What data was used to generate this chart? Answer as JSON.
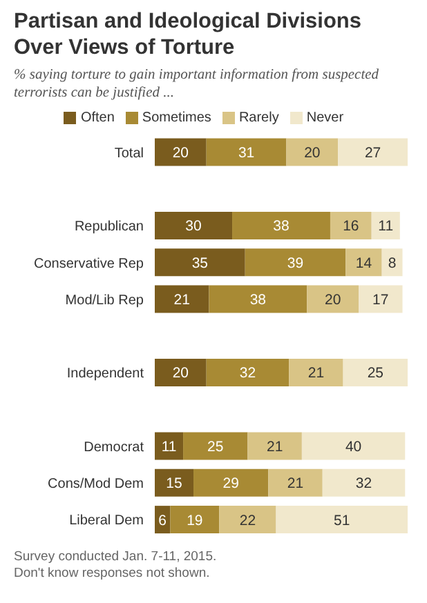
{
  "chart_data": {
    "type": "bar",
    "orientation": "horizontal",
    "stacked": true,
    "data_labels": true,
    "legend": "top",
    "title": "Partisan and Ideological Divisions Over Views of Torture",
    "subtitle": "% saying torture to gain important information from suspected terrorists can be justified ...",
    "categories": [
      "Total",
      null,
      "Republican",
      "Conservative Rep",
      "Mod/Lib Rep",
      null,
      "Independent",
      null,
      "Democrat",
      "Cons/Mod Dem",
      "Liberal Dem"
    ],
    "series": [
      {
        "name": "Often",
        "color": "#7a5c1e",
        "values": [
          20,
          null,
          30,
          35,
          21,
          null,
          20,
          null,
          11,
          15,
          6
        ]
      },
      {
        "name": "Sometimes",
        "color": "#a88a34",
        "values": [
          31,
          null,
          38,
          39,
          38,
          null,
          32,
          null,
          25,
          29,
          19
        ]
      },
      {
        "name": "Rarely",
        "color": "#d9c486",
        "values": [
          20,
          null,
          16,
          14,
          20,
          null,
          21,
          null,
          21,
          21,
          22
        ]
      },
      {
        "name": "Never",
        "color": "#f1e8cc",
        "values": [
          27,
          null,
          11,
          8,
          17,
          null,
          25,
          null,
          40,
          32,
          51
        ]
      }
    ],
    "annotations": [
      "Survey conducted Jan. 7-11, 2015.",
      "Don't know responses not shown."
    ]
  }
}
